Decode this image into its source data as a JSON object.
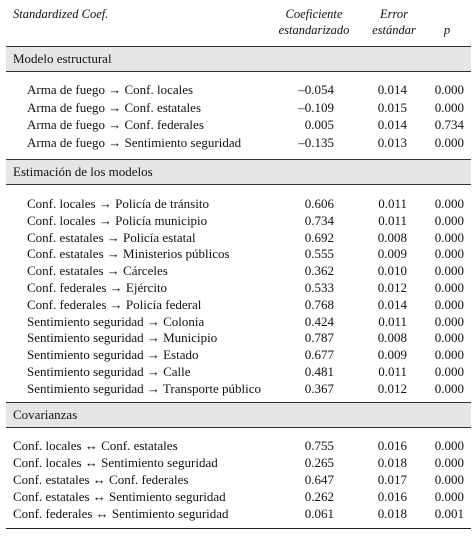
{
  "header": {
    "title": "Standardized Coef.",
    "col1_line1": "Coeficiente",
    "col1_line2": "estandarizado",
    "col2_line1": "Error",
    "col2_line2": "estándar",
    "col3": "p"
  },
  "sections": [
    {
      "title": "Modelo estructural",
      "rows": [
        {
          "label": "Arma de fuego → Conf. locales",
          "coef": "–0.054",
          "se": "0.014",
          "p": "0.000"
        },
        {
          "label": "Arma de fuego → Conf. estatales",
          "coef": "–0.109",
          "se": "0.015",
          "p": "0.000"
        },
        {
          "label": "Arma de fuego → Conf. federales",
          "coef": "0.005",
          "se": "0.014",
          "p": "0.734"
        },
        {
          "label": "Arma de fuego → Sentimiento seguridad",
          "coef": "–0.135",
          "se": "0.013",
          "p": "0.000"
        }
      ]
    },
    {
      "title": "Estimación de los modelos",
      "rows": [
        {
          "label": "Conf. locales → Policía de tránsito",
          "coef": "0.606",
          "se": "0.011",
          "p": "0.000"
        },
        {
          "label": "Conf. locales → Policía municipio",
          "coef": "0.734",
          "se": "0.011",
          "p": "0.000"
        },
        {
          "label": "Conf. estatales → Policía estatal",
          "coef": "0.692",
          "se": "0.008",
          "p": "0.000"
        },
        {
          "label": "Conf. estatales → Ministerios públicos",
          "coef": "0.555",
          "se": "0.009",
          "p": "0.000"
        },
        {
          "label": "Conf. estatales → Cárceles",
          "coef": "0.362",
          "se": "0.010",
          "p": "0.000"
        },
        {
          "label": "Conf. federales → Ejército",
          "coef": "0.533",
          "se": "0.012",
          "p": "0.000"
        },
        {
          "label": "Conf. federales → Policía federal",
          "coef": "0.768",
          "se": "0.014",
          "p": "0.000"
        },
        {
          "label": "Sentimiento seguridad → Colonia",
          "coef": "0.424",
          "se": "0.011",
          "p": "0.000"
        },
        {
          "label": "Sentimiento seguridad → Municipio",
          "coef": "0.787",
          "se": "0.008",
          "p": "0.000"
        },
        {
          "label": "Sentimiento seguridad → Estado",
          "coef": "0.677",
          "se": "0.009",
          "p": "0.000"
        },
        {
          "label": "Sentimiento seguridad → Calle",
          "coef": "0.481",
          "se": "0.011",
          "p": "0.000"
        },
        {
          "label": "Sentimiento seguridad → Transporte público",
          "coef": "0.367",
          "se": "0.012",
          "p": "0.000"
        }
      ]
    },
    {
      "title": "Covarianzas",
      "rows": [
        {
          "label": "Conf. locales ↔ Conf. estatales",
          "coef": "0.755",
          "se": "0.016",
          "p": "0.000"
        },
        {
          "label": "Conf. locales ↔ Sentimiento seguridad",
          "coef": "0.265",
          "se": "0.018",
          "p": "0.000"
        },
        {
          "label": "Conf. estatales ↔ Conf. federales",
          "coef": "0.647",
          "se": "0.017",
          "p": "0.000"
        },
        {
          "label": "Conf. estatales ↔ Sentimiento seguridad",
          "coef": "0.262",
          "se": "0.016",
          "p": "0.000"
        },
        {
          "label": "Conf. federales ↔ Sentimiento seguridad",
          "coef": "0.061",
          "se": "0.018",
          "p": "0.001"
        }
      ]
    }
  ]
}
